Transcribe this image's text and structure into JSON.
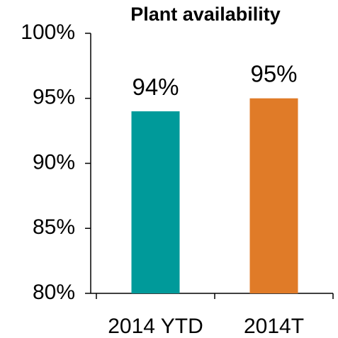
{
  "chart_data": {
    "type": "bar",
    "title": "Plant availability",
    "categories": [
      "2014 YTD",
      "2014T"
    ],
    "values": [
      94,
      95
    ],
    "value_labels": [
      "94%",
      "95%"
    ],
    "colors": [
      "#009a9a",
      "#e07b28"
    ],
    "ylim": [
      80,
      100
    ],
    "yticks": [
      {
        "value": 80,
        "label": "80%"
      },
      {
        "value": 85,
        "label": "85%"
      },
      {
        "value": 90,
        "label": "90%"
      },
      {
        "value": 95,
        "label": "95%"
      },
      {
        "value": 100,
        "label": "100%"
      }
    ],
    "grid": false
  }
}
